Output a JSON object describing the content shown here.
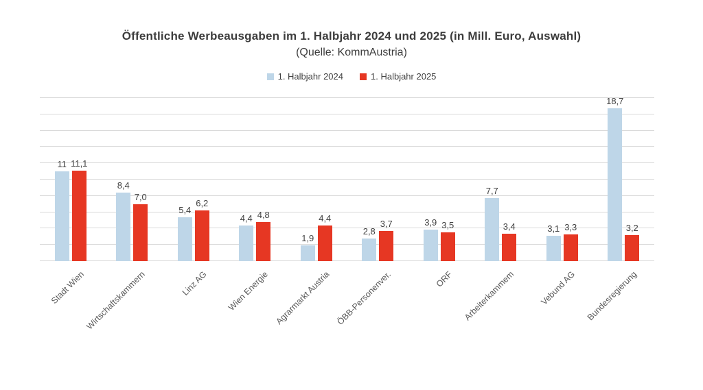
{
  "chart": {
    "title": "Öffentliche Werbeausgaben im 1. Halbjahr 2024 und 2025 (in Mill. Euro, Auswahl)",
    "subtitle": "(Quelle: KommAustria)"
  },
  "chart_data": {
    "type": "bar",
    "title": "Öffentliche Werbeausgaben im 1. Halbjahr 2024 und 2025 (in Mill. Euro, Auswahl)",
    "subtitle": "(Quelle: KommAustria)",
    "categories": [
      "Stadt Wien",
      "Wirtschaftskammern",
      "Linz AG",
      "Wien Energie",
      "Agrarmarkt Austria",
      "ÖBB-Personenver.",
      "ORF",
      "Arbeiterkammem",
      "Vebund AG",
      "Bundesregierung"
    ],
    "series": [
      {
        "name": "1. Halbjahr 2024",
        "color": "#bed6e8",
        "values": [
          11,
          8.4,
          5.4,
          4.4,
          1.9,
          2.8,
          3.9,
          7.7,
          3.1,
          18.7
        ],
        "labels": [
          "11",
          "8,4",
          "5,4",
          "4,4",
          "1,9",
          "2,8",
          "3,9",
          "7,7",
          "3,1",
          "18,7"
        ]
      },
      {
        "name": "1. Halbjahr 2025",
        "color": "#e63723",
        "values": [
          11.1,
          7.0,
          6.2,
          4.8,
          4.4,
          3.7,
          3.5,
          3.4,
          3.3,
          3.2
        ],
        "labels": [
          "11,1",
          "7,0",
          "6,2",
          "4,8",
          "4,4",
          "3,7",
          "3,5",
          "3,4",
          "3,3",
          "3,2"
        ]
      }
    ],
    "xlabel": "",
    "ylabel": "",
    "ylim": [
      0,
      20
    ],
    "gridline_step": 2,
    "grid": true,
    "y_axis_labels_visible": false,
    "legend_position": "top",
    "number_format": "decimal-comma",
    "colors": {
      "gridline": "#d9d9d9",
      "title_text": "#3d3d3d",
      "value_label_text": "#404040",
      "axis_label_text": "#595959",
      "background": "#ffffff"
    }
  }
}
